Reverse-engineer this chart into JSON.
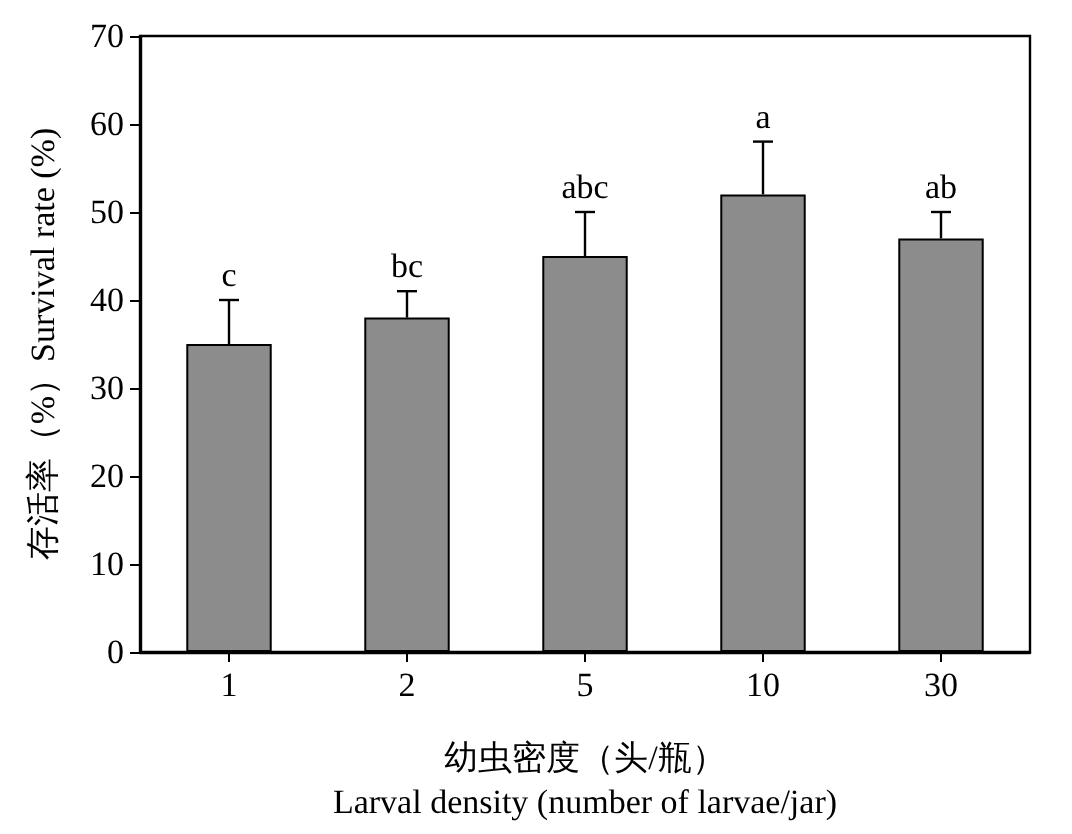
{
  "chart_data": {
    "type": "bar",
    "categories": [
      "1",
      "2",
      "5",
      "10",
      "30"
    ],
    "values": [
      35,
      38,
      45,
      52,
      47
    ],
    "errors": [
      [
        35,
        40
      ],
      [
        38,
        41
      ],
      [
        45,
        50
      ],
      [
        52,
        58
      ],
      [
        47,
        50
      ]
    ],
    "color": "#8c8c8c",
    "xlabel": "幼虫密度（头/瓶）\nLarval density (number of larvae/jar)",
    "ylabel": "存活率（%）Survival rate (%)",
    "ylim": [
      0,
      70
    ],
    "yticks": [
      0,
      10,
      20,
      30,
      40,
      50,
      60,
      70
    ],
    "annotations": [
      {
        "text": "c",
        "x": "1",
        "y": 40
      },
      {
        "text": "bc",
        "x": "2",
        "y": 41
      },
      {
        "text": "abc",
        "x": "5",
        "y": 50
      },
      {
        "text": "a",
        "x": "10",
        "y": 58
      },
      {
        "text": "ab",
        "x": "30",
        "y": 50
      }
    ],
    "grid": false
  }
}
